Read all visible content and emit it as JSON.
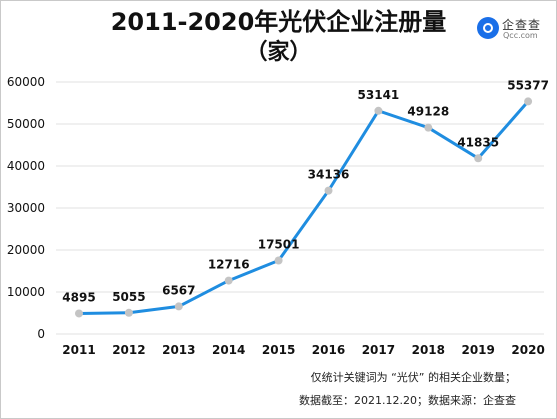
{
  "title": {
    "line1": "2011-2020年光伏企业注册量",
    "line2": "（家）"
  },
  "logo": {
    "name": "企查查",
    "sub": "Qcc.com",
    "icon": "qichacha-logo-icon",
    "color": "#1a6fe8"
  },
  "notes": {
    "line1": "仅统计关键词为 “光伏” 的相关企业数量；",
    "line2": "数据截至：2021.12.20；数据来源：企查查"
  },
  "colors": {
    "line": "#1f8de0",
    "marker": "#c4c4c4",
    "grid": "#e2e2e2",
    "text": "#111111"
  },
  "chart_data": {
    "type": "line",
    "title": "2011-2020年光伏企业注册量（家）",
    "xlabel": "",
    "ylabel": "",
    "categories": [
      "2011",
      "2012",
      "2013",
      "2014",
      "2015",
      "2016",
      "2017",
      "2018",
      "2019",
      "2020"
    ],
    "series": [
      {
        "values": [
          4895,
          5055,
          6567,
          12716,
          17501,
          34136,
          53141,
          49128,
          41835,
          55377
        ],
        "labels": [
          "4895",
          "5055",
          "6567",
          "12716",
          "17501",
          "34136",
          "53141",
          "49128",
          "41835",
          "55377"
        ]
      }
    ],
    "ylim": [
      0,
      60000
    ],
    "yticks": [
      "0",
      "10000",
      "20000",
      "30000",
      "40000",
      "50000",
      "60000"
    ],
    "grid": true,
    "legend": "none"
  }
}
